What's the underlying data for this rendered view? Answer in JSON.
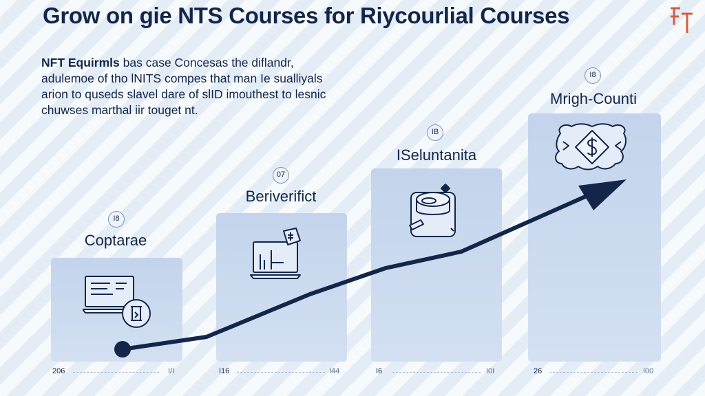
{
  "header": {
    "title": "Grow on gie NTS Courses for Riycourlial Courses",
    "logo": "FT"
  },
  "intro": {
    "lead": "NFT Equirmls",
    "text": " bas case Concesas the diflandr, adulemoe of tho lNITS compes that man Ie sualliyals arion to quseds slavel dare of slID imouthest to lesnic chuwses marthal iir touget nt."
  },
  "steps": [
    {
      "badge": "I8",
      "label": "Coptarae",
      "icon": "laptop-coin-icon",
      "xlabel_left": "206",
      "xlabel_right": "I/I"
    },
    {
      "badge": "07",
      "label": "Beriverifict",
      "icon": "laptop-chart-icon",
      "xlabel_left": "I16",
      "xlabel_right": "I44"
    },
    {
      "badge": "IB",
      "label": "ISeluntanita",
      "icon": "coins-stack-icon",
      "xlabel_left": "I6",
      "xlabel_right": "I0I"
    },
    {
      "badge": "I8",
      "label": "Mrigh-Counti",
      "icon": "dollar-badge-icon",
      "xlabel_left": "26",
      "xlabel_right": "I00"
    }
  ],
  "colors": {
    "navy": "#13264a",
    "bar": "#c3d4ec",
    "background": "#eef3fa"
  }
}
